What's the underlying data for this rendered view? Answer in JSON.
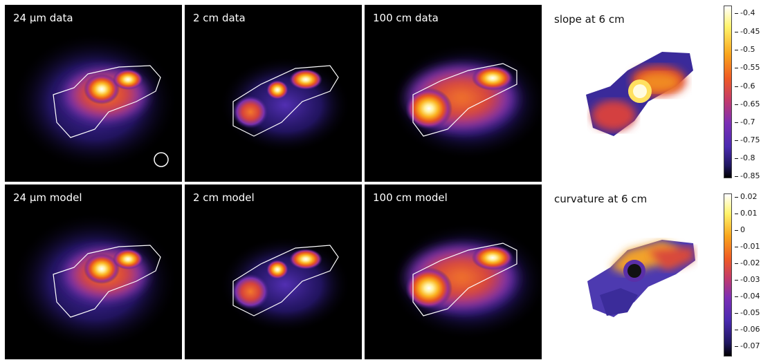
{
  "panels": {
    "p1": "24 μm data",
    "p2": "2 cm data",
    "p3": "100 cm data",
    "p4": "slope at 6 cm",
    "p5": "24 μm model",
    "p6": "2 cm model",
    "p7": "100 cm model",
    "p8": "curvature at 6 cm"
  },
  "colorbar_top": {
    "ticks": [
      "-0.4",
      "-0.45",
      "-0.5",
      "-0.55",
      "-0.6",
      "-0.65",
      "-0.7",
      "-0.75",
      "-0.8",
      "-0.85"
    ]
  },
  "colorbar_bottom": {
    "ticks": [
      "0.02",
      "0.01",
      "0",
      "-0.01",
      "-0.02",
      "-0.03",
      "-0.04",
      "-0.05",
      "-0.06",
      "-0.07"
    ]
  },
  "colormap": [
    "#000000",
    "#1b0f45",
    "#3a1f8a",
    "#6a2fb0",
    "#a03a9a",
    "#d8443c",
    "#f2661a",
    "#f8a11a",
    "#fbd93a",
    "#ffffff"
  ]
}
